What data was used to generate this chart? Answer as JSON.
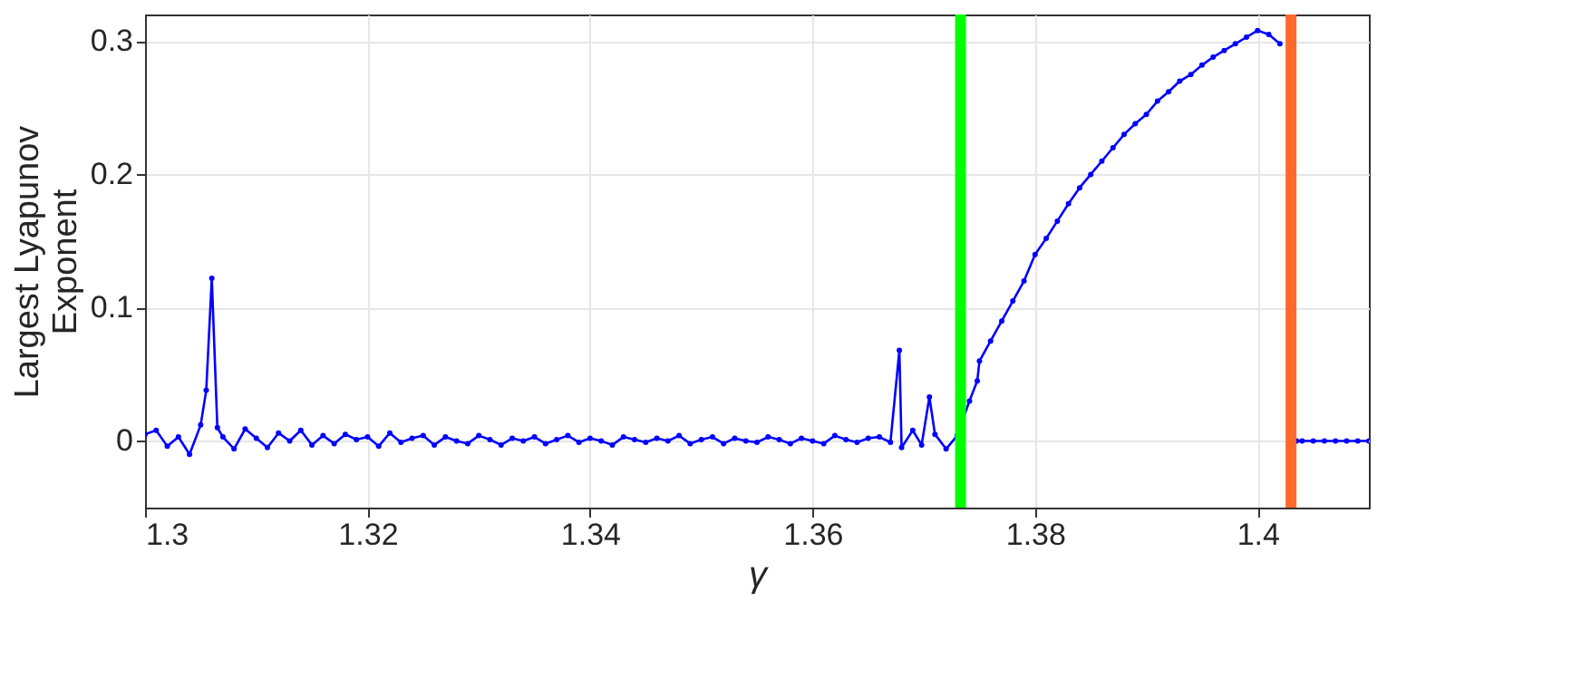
{
  "chart_data": {
    "type": "line",
    "xlabel": "γ",
    "ylabel": "Largest Lyapunov\nExponent",
    "x": [
      1.3,
      1.301,
      1.302,
      1.303,
      1.304,
      1.305,
      1.3055,
      1.306,
      1.3065,
      1.307,
      1.308,
      1.309,
      1.31,
      1.311,
      1.312,
      1.313,
      1.314,
      1.315,
      1.316,
      1.317,
      1.318,
      1.319,
      1.32,
      1.321,
      1.322,
      1.323,
      1.324,
      1.325,
      1.326,
      1.327,
      1.328,
      1.329,
      1.33,
      1.331,
      1.332,
      1.333,
      1.334,
      1.335,
      1.336,
      1.337,
      1.338,
      1.339,
      1.34,
      1.341,
      1.342,
      1.343,
      1.344,
      1.345,
      1.346,
      1.347,
      1.348,
      1.349,
      1.35,
      1.351,
      1.352,
      1.353,
      1.354,
      1.355,
      1.356,
      1.357,
      1.358,
      1.359,
      1.36,
      1.361,
      1.362,
      1.363,
      1.364,
      1.365,
      1.366,
      1.367,
      1.3678,
      1.368,
      1.369,
      1.3698,
      1.3705,
      1.371,
      1.372,
      1.373,
      1.3741,
      1.3748,
      1.375,
      1.376,
      1.377,
      1.378,
      1.379,
      1.38,
      1.381,
      1.382,
      1.383,
      1.384,
      1.385,
      1.386,
      1.387,
      1.388,
      1.389,
      1.39,
      1.391,
      1.392,
      1.393,
      1.394,
      1.395,
      1.396,
      1.397,
      1.398,
      1.399,
      1.4,
      1.401,
      1.402,
      1.403,
      1.4035,
      1.404,
      1.405,
      1.406,
      1.407,
      1.408,
      1.409,
      1.41
    ],
    "series": [
      {
        "color": "#0000ff",
        "values": [
          0.005,
          0.008,
          -0.004,
          0.003,
          -0.01,
          0.012,
          0.038,
          0.122,
          0.01,
          0.003,
          -0.006,
          0.009,
          0.002,
          -0.005,
          0.006,
          0.0,
          0.008,
          -0.003,
          0.004,
          -0.002,
          0.005,
          0.001,
          0.003,
          -0.004,
          0.006,
          -0.001,
          0.002,
          0.004,
          -0.003,
          0.003,
          0.0,
          -0.002,
          0.004,
          0.001,
          -0.003,
          0.002,
          0.0,
          0.003,
          -0.002,
          0.001,
          0.004,
          -0.001,
          0.002,
          0.0,
          -0.003,
          0.003,
          0.001,
          -0.001,
          0.002,
          0.0,
          0.004,
          -0.002,
          0.001,
          0.003,
          -0.002,
          0.002,
          0.0,
          -0.001,
          0.003,
          0.001,
          -0.002,
          0.002,
          0.0,
          -0.002,
          0.004,
          0.001,
          -0.001,
          0.002,
          0.003,
          -0.001,
          0.068,
          -0.005,
          0.008,
          -0.003,
          0.033,
          0.005,
          -0.006,
          0.004,
          0.03,
          0.045,
          0.06,
          0.075,
          0.09,
          0.105,
          0.12,
          0.14,
          0.152,
          0.165,
          0.178,
          0.19,
          0.2,
          0.21,
          0.22,
          0.23,
          0.238,
          0.245,
          0.255,
          0.262,
          0.27,
          0.275,
          0.282,
          0.288,
          0.293,
          0.298,
          0.303,
          0.308,
          0.305,
          0.298,
          null,
          0,
          0,
          0,
          0,
          0,
          0,
          0,
          0
        ]
      }
    ],
    "xlim": [
      1.3,
      1.41
    ],
    "xticks": [
      1.3,
      1.32,
      1.34,
      1.36,
      1.38,
      1.4
    ],
    "ylim": [
      -0.05,
      0.32
    ],
    "yticks": [
      0,
      0.1,
      0.2,
      0.3
    ],
    "ref_lines": [
      {
        "axis": "x",
        "value": 1.3733,
        "color": "#00ff00"
      },
      {
        "axis": "x",
        "value": 1.403,
        "color": "#ff6a2a"
      }
    ],
    "grid": true,
    "marker": "circle",
    "line_style": "solid"
  }
}
